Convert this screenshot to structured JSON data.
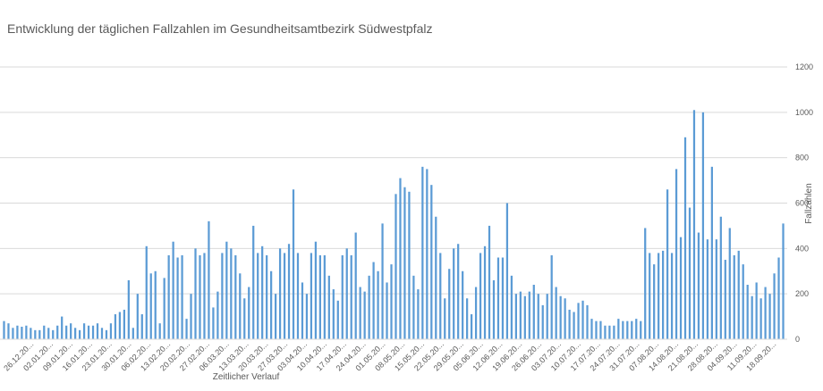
{
  "chart_data": {
    "type": "bar",
    "title": "Entwicklung der täglichen Fallzahlen im Gesundheitsamtbezirk Südwestpfalz",
    "xlabel": "Zeitlicher Verlauf",
    "ylabel": "Fallzahlen",
    "ylim": [
      0,
      1200
    ],
    "yticks": [
      "0",
      "200",
      "400",
      "600",
      "800",
      "1000",
      "1200"
    ],
    "y_axis_position": "right",
    "grid": true,
    "bar_color": "#5b9bd5",
    "xtick_labels": [
      "26.12.20...",
      "02.01.20...",
      "09.01.20...",
      "16.01.20...",
      "23.01.20...",
      "30.01.20...",
      "06.02.20...",
      "13.02.20...",
      "20.02.20...",
      "27.02.20...",
      "06.03.20...",
      "13.03.20...",
      "20.03.20...",
      "27.03.20...",
      "03.04.20...",
      "10.04.20...",
      "17.04.20...",
      "24.04.20...",
      "01.05.20...",
      "08.05.20...",
      "15.05.20...",
      "22.05.20...",
      "29.05.20...",
      "05.06.20...",
      "12.06.20...",
      "19.06.20...",
      "26.06.20...",
      "03.07.20...",
      "10.07.20...",
      "17.07.20...",
      "24.07.20...",
      "31.07.20...",
      "07.08.20...",
      "14.08.20...",
      "21.08.20...",
      "28.08.20...",
      "04.09.20...",
      "11.09.20...",
      "18.09.20..."
    ],
    "values": [
      80,
      70,
      50,
      60,
      55,
      60,
      50,
      40,
      40,
      60,
      50,
      40,
      60,
      100,
      60,
      70,
      50,
      40,
      70,
      60,
      60,
      70,
      50,
      40,
      70,
      110,
      120,
      130,
      260,
      50,
      200,
      110,
      410,
      290,
      300,
      70,
      270,
      370,
      430,
      360,
      370,
      90,
      200,
      400,
      370,
      380,
      520,
      140,
      210,
      380,
      430,
      400,
      370,
      290,
      180,
      230,
      500,
      380,
      410,
      370,
      300,
      200,
      400,
      380,
      420,
      660,
      380,
      250,
      200,
      380,
      430,
      370,
      370,
      280,
      220,
      170,
      370,
      400,
      370,
      470,
      230,
      210,
      280,
      340,
      300,
      510,
      250,
      330,
      640,
      710,
      670,
      650,
      280,
      220,
      760,
      750,
      680,
      540,
      380,
      180,
      310,
      400,
      420,
      300,
      180,
      110,
      230,
      380,
      410,
      500,
      260,
      360,
      360,
      600,
      280,
      200,
      210,
      190,
      210,
      240,
      200,
      150,
      200,
      370,
      230,
      190,
      180,
      130,
      120,
      160,
      170,
      150,
      90,
      80,
      80,
      60,
      60,
      60,
      90,
      80,
      80,
      80,
      90,
      80,
      490,
      380,
      330,
      380,
      390,
      660,
      380,
      750,
      450,
      890,
      580,
      1010,
      470,
      1000,
      440,
      760,
      440,
      540,
      350,
      490,
      370,
      390,
      330,
      240,
      190,
      250,
      180,
      230,
      200,
      290,
      360,
      510
    ]
  }
}
